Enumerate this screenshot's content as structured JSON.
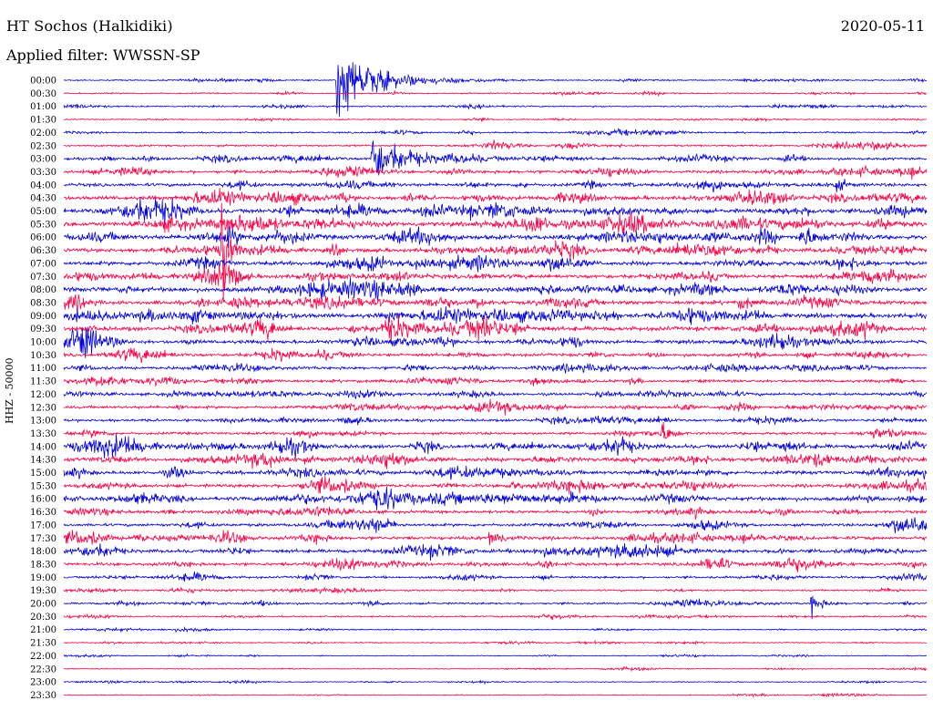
{
  "header": {
    "station": "HT Sochos (Halkidiki)",
    "date": "2020-05-11",
    "filter": "Applied filter: WWSSN-SP"
  },
  "chart_data": {
    "type": "line",
    "title": "HT Sochos (Halkidiki)",
    "ylabel": "HHZ - 50000",
    "row_labels": [
      "00:00",
      "00:30",
      "01:00",
      "01:30",
      "02:00",
      "02:30",
      "03:00",
      "03:30",
      "04:00",
      "04:30",
      "05:00",
      "05:30",
      "06:00",
      "06:30",
      "07:00",
      "07:30",
      "08:00",
      "08:30",
      "09:00",
      "09:30",
      "10:00",
      "10:30",
      "11:00",
      "11:30",
      "12:00",
      "12:30",
      "13:00",
      "13:30",
      "14:00",
      "14:30",
      "15:00",
      "15:30",
      "16:00",
      "16:30",
      "17:00",
      "17:30",
      "18:00",
      "18:30",
      "19:00",
      "19:30",
      "20:00",
      "20:30",
      "21:00",
      "21:30",
      "22:00",
      "22:30",
      "23:00",
      "23:30"
    ],
    "colors": {
      "even_rows": "#0000e0",
      "odd_rows": "#ff0044"
    },
    "row_noise_levels": [
      0.6,
      0.6,
      0.7,
      0.5,
      0.7,
      0.9,
      1.2,
      1.4,
      1.5,
      1.8,
      2.0,
      2.2,
      2.0,
      1.8,
      1.8,
      1.8,
      2.2,
      1.8,
      2.0,
      2.0,
      1.6,
      1.4,
      1.3,
      1.3,
      1.2,
      1.3,
      1.2,
      1.2,
      1.8,
      1.8,
      1.6,
      1.5,
      1.8,
      1.4,
      1.3,
      1.5,
      1.6,
      1.4,
      1.0,
      0.8,
      0.9,
      0.7,
      0.5,
      0.5,
      0.4,
      0.4,
      0.4,
      0.4
    ],
    "events": [
      {
        "row": 0,
        "minute": 9.5,
        "amplitude": 34,
        "duration_min": 2.0
      },
      {
        "row": 6,
        "minute": 10.7,
        "amplitude": 22,
        "duration_min": 1.8
      },
      {
        "row": 13,
        "minute": 5.5,
        "amplitude": 60,
        "duration_min": 0.3
      },
      {
        "row": 12,
        "minute": 25.6,
        "amplitude": 12,
        "duration_min": 0.8
      },
      {
        "row": 20,
        "minute": 0.3,
        "amplitude": 8,
        "duration_min": 0.8
      },
      {
        "row": 35,
        "minute": 14.8,
        "amplitude": 10,
        "duration_min": 0.6
      },
      {
        "row": 40,
        "minute": 26.0,
        "amplitude": 10,
        "duration_min": 0.5
      },
      {
        "row": 19,
        "minute": 11.2,
        "amplitude": 8,
        "duration_min": 1.0
      },
      {
        "row": 28,
        "minute": 19.2,
        "amplitude": 9,
        "duration_min": 0.4
      },
      {
        "row": 27,
        "minute": 20.8,
        "amplitude": 8,
        "duration_min": 0.4
      }
    ]
  }
}
